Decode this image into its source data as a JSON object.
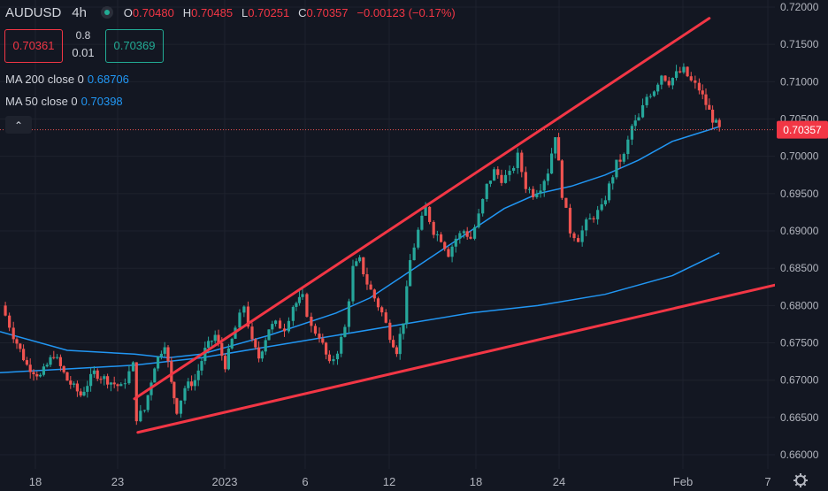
{
  "header": {
    "symbol": "AUDUSD",
    "timeframe": "4h",
    "open_label": "O",
    "open": "0.70480",
    "high_label": "H",
    "high": "0.70485",
    "low_label": "L",
    "low": "0.70251",
    "close_label": "C",
    "close": "0.70357",
    "change": "−0.00123 (−0.17%)"
  },
  "trade": {
    "sell": "0.70361",
    "buy": "0.70369",
    "spread_top": "0.8",
    "spread_bottom": "0.01"
  },
  "indicators": [
    {
      "label": "MA 200 close 0",
      "value": "0.68706",
      "color": "#2196f3"
    },
    {
      "label": "MA 50 close 0",
      "value": "0.70398",
      "color": "#2196f3"
    }
  ],
  "collapse_icon": "chevron-up-icon",
  "colors": {
    "up": "#26a69a",
    "down": "#ef5350",
    "trend": "#f23645",
    "ma": "#2196f3",
    "bg": "#131722"
  },
  "chart_data": {
    "type": "candlestick",
    "price_axis": {
      "ticks": [
        "0.72000",
        "0.71500",
        "0.71000",
        "0.70500",
        "0.70000",
        "0.69500",
        "0.69000",
        "0.68500",
        "0.68000",
        "0.67500",
        "0.67000",
        "0.66500",
        "0.66000"
      ],
      "range": [
        0.6575,
        0.7205
      ]
    },
    "last_price": "0.70357",
    "time_axis": [
      "18",
      "23",
      "2023",
      "6",
      "12",
      "18",
      "24",
      "Feb",
      "7"
    ],
    "ohlc_close_path": [
      [
        0.2,
        0.68
      ],
      [
        2,
        0.676
      ],
      [
        4,
        0.672
      ],
      [
        6,
        0.6705
      ],
      [
        8,
        0.6735
      ],
      [
        10,
        0.67
      ],
      [
        12,
        0.668
      ],
      [
        14,
        0.671
      ],
      [
        16,
        0.67
      ],
      [
        18,
        0.669
      ],
      [
        19.8,
        0.672
      ],
      [
        20.3,
        0.665
      ],
      [
        21.5,
        0.666
      ],
      [
        23,
        0.672
      ],
      [
        24.5,
        0.675
      ],
      [
        25.5,
        0.6695
      ],
      [
        26.3,
        0.666
      ],
      [
        27.5,
        0.669
      ],
      [
        29,
        0.67
      ],
      [
        30.5,
        0.674
      ],
      [
        32,
        0.676
      ],
      [
        33.5,
        0.672
      ],
      [
        35,
        0.677
      ],
      [
        36.3,
        0.68
      ],
      [
        37.5,
        0.675
      ],
      [
        38.5,
        0.673
      ],
      [
        40,
        0.677
      ],
      [
        41,
        0.6775
      ],
      [
        42.3,
        0.677
      ],
      [
        43.6,
        0.68
      ],
      [
        45,
        0.681
      ],
      [
        46.3,
        0.677
      ],
      [
        47.5,
        0.676
      ],
      [
        49,
        0.672
      ],
      [
        50.2,
        0.674
      ],
      [
        51.3,
        0.677
      ],
      [
        52.5,
        0.685
      ],
      [
        53.5,
        0.686
      ],
      [
        54.6,
        0.683
      ],
      [
        55.7,
        0.681
      ],
      [
        56.8,
        0.679
      ],
      [
        58,
        0.676
      ],
      [
        59,
        0.674
      ],
      [
        60,
        0.678
      ],
      [
        61,
        0.686
      ],
      [
        62.2,
        0.69
      ],
      [
        63.3,
        0.693
      ],
      [
        64.5,
        0.69
      ],
      [
        65.6,
        0.689
      ],
      [
        66.7,
        0.687
      ],
      [
        67.8,
        0.689
      ],
      [
        69,
        0.69
      ],
      [
        70,
        0.689
      ],
      [
        71.2,
        0.692
      ],
      [
        72.4,
        0.696
      ],
      [
        73.5,
        0.698
      ],
      [
        74.6,
        0.697
      ],
      [
        75.8,
        0.6975
      ],
      [
        77,
        0.7
      ],
      [
        78.2,
        0.696
      ],
      [
        79.3,
        0.695
      ],
      [
        80.4,
        0.696
      ],
      [
        81.5,
        0.698
      ],
      [
        82.6,
        0.703
      ],
      [
        83.6,
        0.695
      ],
      [
        84.8,
        0.69
      ],
      [
        86,
        0.689
      ],
      [
        87.2,
        0.691
      ],
      [
        88.3,
        0.692
      ],
      [
        89.5,
        0.693
      ],
      [
        90.6,
        0.696
      ],
      [
        91.7,
        0.699
      ],
      [
        92.8,
        0.7
      ],
      [
        94,
        0.704
      ],
      [
        95,
        0.705
      ],
      [
        96.2,
        0.708
      ],
      [
        97.3,
        0.709
      ],
      [
        98.4,
        0.711
      ],
      [
        99.5,
        0.71
      ],
      [
        100.6,
        0.711
      ],
      [
        101.7,
        0.7115
      ],
      [
        102.8,
        0.71
      ],
      [
        104,
        0.709
      ],
      [
        105,
        0.707
      ],
      [
        106,
        0.705
      ],
      [
        107,
        0.70357
      ]
    ],
    "ma200": [
      [
        0,
        0.671
      ],
      [
        20,
        0.672
      ],
      [
        30,
        0.673
      ],
      [
        40,
        0.6745
      ],
      [
        50,
        0.676
      ],
      [
        60,
        0.6775
      ],
      [
        70,
        0.679
      ],
      [
        80,
        0.68
      ],
      [
        90,
        0.6815
      ],
      [
        100,
        0.684
      ],
      [
        107,
        0.68706
      ]
    ],
    "ma50": [
      [
        0,
        0.6765
      ],
      [
        10,
        0.674
      ],
      [
        20,
        0.6735
      ],
      [
        25,
        0.673
      ],
      [
        30,
        0.6735
      ],
      [
        40,
        0.676
      ],
      [
        50,
        0.679
      ],
      [
        55,
        0.681
      ],
      [
        60,
        0.684
      ],
      [
        65,
        0.687
      ],
      [
        70,
        0.69
      ],
      [
        75,
        0.693
      ],
      [
        80,
        0.695
      ],
      [
        85,
        0.696
      ],
      [
        90,
        0.6975
      ],
      [
        95,
        0.6995
      ],
      [
        100,
        0.702
      ],
      [
        107,
        0.70398
      ]
    ],
    "trendlines": [
      {
        "from": [
          20,
          0.6675
        ],
        "to": [
          105.5,
          0.7185
        ]
      },
      {
        "from": [
          20.5,
          0.663
        ],
        "to": [
          116.5,
          0.683
        ]
      }
    ]
  }
}
